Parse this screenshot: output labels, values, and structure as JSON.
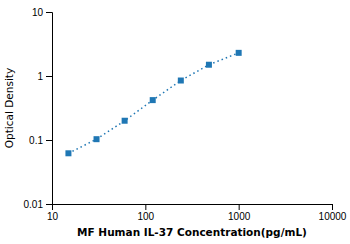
{
  "chart_data": {
    "type": "line",
    "x": [
      15,
      30,
      60,
      120,
      240,
      480,
      1000
    ],
    "values": [
      0.062,
      0.103,
      0.2,
      0.42,
      0.85,
      1.5,
      2.3
    ],
    "xlabel": "MF Human IL-37 Concentration(pg/mL)",
    "ylabel": "Optical Density",
    "log": true,
    "xlim": [
      10,
      10000
    ],
    "ylim": [
      0.01,
      10
    ],
    "xticks": [
      10,
      100,
      1000,
      10000
    ],
    "yticks": [
      0.01,
      0.1,
      1,
      10
    ],
    "marker": "square",
    "line_style": "dotted",
    "grid": false
  }
}
